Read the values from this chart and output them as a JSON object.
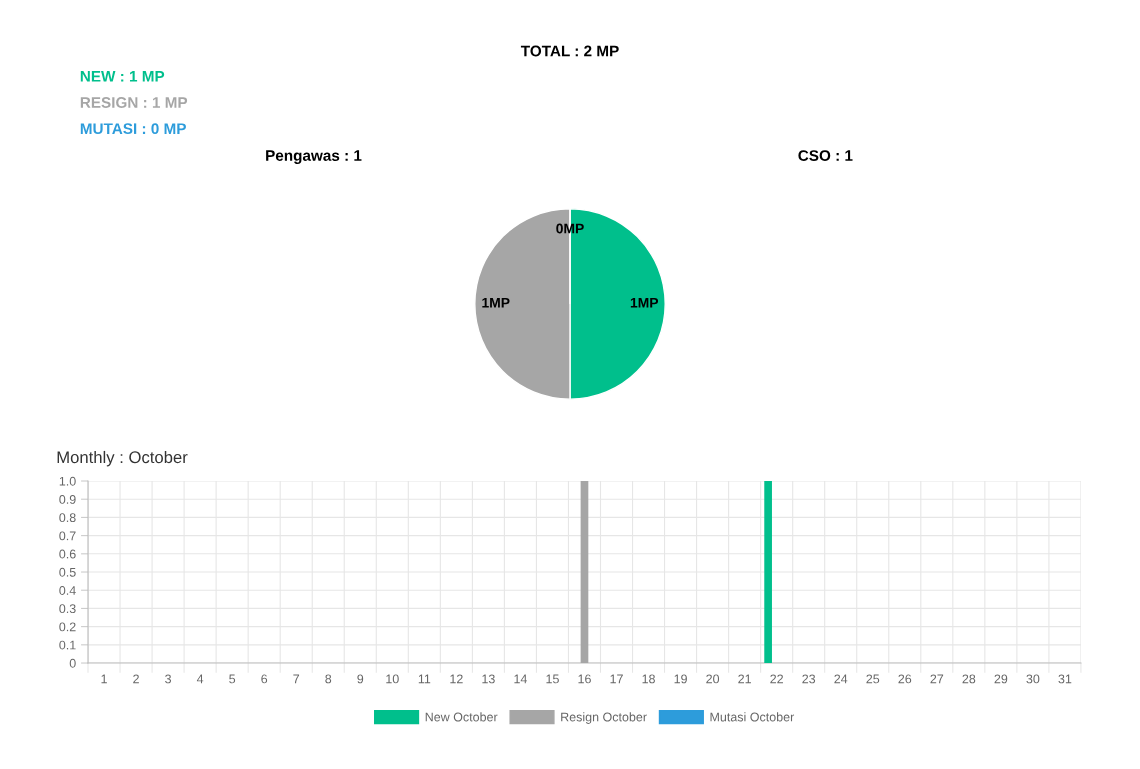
{
  "chart_data": [
    {
      "type": "other",
      "title": "TOTAL : 2 MP",
      "annotations": [
        "NEW : 1 MP",
        "RESIGN : 1 MP",
        "MUTASI : 0 MP",
        "Pengawas : 1",
        "CSO : 1"
      ],
      "colors": [
        "#00bf8c",
        "#a6a6a6",
        "#2d9cdb",
        "#000000",
        "#000000"
      ]
    },
    {
      "type": "pie",
      "categories": [
        null,
        null,
        null
      ],
      "values": [
        1,
        1,
        0
      ],
      "colors": [
        "#00bf8c",
        "#a6a6a6",
        "#2d9cdb"
      ],
      "value_labels": [
        "1MP",
        "1MP",
        "0MP"
      ]
    },
    {
      "type": "bar",
      "title": "Monthly : October",
      "categories": [
        "1",
        "2",
        "3",
        "4",
        "5",
        "6",
        "7",
        "8",
        "9",
        "10",
        "11",
        "12",
        "13",
        "14",
        "15",
        "16",
        "17",
        "18",
        "19",
        "20",
        "21",
        "22",
        "23",
        "24",
        "25",
        "26",
        "27",
        "28",
        "29",
        "30",
        "31"
      ],
      "series": [
        {
          "name": "New October",
          "color": "#00bf8c",
          "values": [
            0,
            0,
            0,
            0,
            0,
            0,
            0,
            0,
            0,
            0,
            0,
            0,
            0,
            0,
            0,
            0,
            0,
            0,
            0,
            0,
            0,
            1,
            0,
            0,
            0,
            0,
            0,
            0,
            0,
            0,
            0
          ]
        },
        {
          "name": "Resign October",
          "color": "#a6a6a6",
          "values": [
            0,
            0,
            0,
            0,
            0,
            0,
            0,
            0,
            0,
            0,
            0,
            0,
            0,
            0,
            0,
            1,
            0,
            0,
            0,
            0,
            0,
            0,
            0,
            0,
            0,
            0,
            0,
            0,
            0,
            0,
            0
          ]
        },
        {
          "name": "Mutasi October",
          "color": "#2d9cdb",
          "values": [
            0,
            0,
            0,
            0,
            0,
            0,
            0,
            0,
            0,
            0,
            0,
            0,
            0,
            0,
            0,
            0,
            0,
            0,
            0,
            0,
            0,
            0,
            0,
            0,
            0,
            0,
            0,
            0,
            0,
            0,
            0
          ]
        }
      ],
      "ylim": [
        0,
        1
      ],
      "yticks": [
        0,
        0.1,
        0.2,
        0.3,
        0.4,
        0.5,
        0.6,
        0.7,
        0.8,
        0.9,
        {
          "value": 1,
          "label": "1.0"
        }
      ],
      "grid": true,
      "legend": "bottom"
    }
  ]
}
